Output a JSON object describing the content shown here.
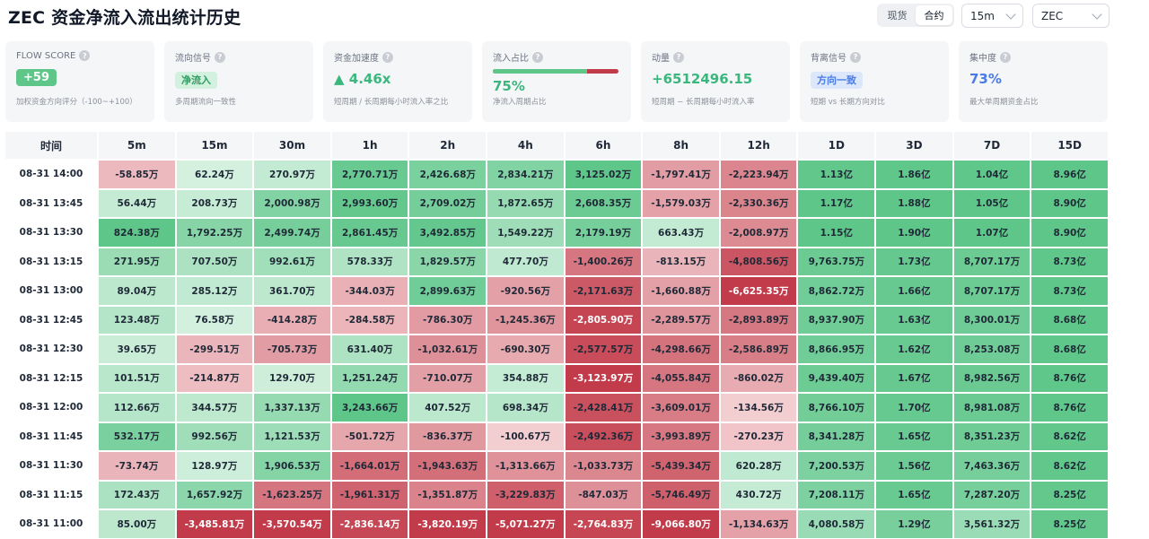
{
  "page": {
    "title": "ZEC 资金净流入流出统计历史",
    "market_toggle": [
      {
        "label": "现货",
        "active": false
      },
      {
        "label": "合约",
        "active": true
      }
    ],
    "timeframe_select": "15m",
    "coin_select": "ZEC"
  },
  "colors": {
    "positive_strong": "#5ec689",
    "negative_strong": "#c23b4a",
    "accent_green": "#3bb77e",
    "accent_blue": "#4b7be5"
  },
  "cards": [
    {
      "label": "FLOW SCORE",
      "value": "+59",
      "sub": "加权资金方向评分（-100~+100）",
      "value_style": "badge-green"
    },
    {
      "label": "流向信号",
      "value": "净流入",
      "sub": "多周期流向一致性",
      "value_style": "badge-green-light"
    },
    {
      "label": "资金加速度",
      "value": "▲ 4.46x",
      "sub": "短周期 / 长周期每小时流入率之比",
      "value_style": "green-text"
    },
    {
      "label": "流入占比",
      "value": "75%",
      "sub": "净流入周期占比",
      "value_style": "green-text",
      "ratio": 0.75
    },
    {
      "label": "动量",
      "value": "+6512496.15",
      "sub": "短周期 − 长周期每小时流入率",
      "value_style": "green-text"
    },
    {
      "label": "背离信号",
      "value": "方向一致",
      "sub": "短期 vs 长期方向对比",
      "value_style": "badge-blue"
    },
    {
      "label": "集中度",
      "value": "73%",
      "sub": "最大单周期资金占比",
      "value_style": "blue-text"
    }
  ],
  "table": {
    "columns": [
      "时间",
      "5m",
      "15m",
      "30m",
      "1h",
      "2h",
      "4h",
      "6h",
      "8h",
      "12h",
      "1D",
      "3D",
      "7D",
      "15D"
    ],
    "rows": [
      {
        "time": "08-31 14:00",
        "cells": [
          "-58.85万",
          "62.24万",
          "270.97万",
          "2,770.71万",
          "2,426.68万",
          "2,834.21万",
          "3,125.02万",
          "-1,797.41万",
          "-2,223.94万",
          "1.13亿",
          "1.86亿",
          "1.04亿",
          "8.96亿"
        ]
      },
      {
        "time": "08-31 13:45",
        "cells": [
          "56.44万",
          "208.73万",
          "2,000.98万",
          "2,993.60万",
          "2,709.02万",
          "1,872.65万",
          "2,608.35万",
          "-1,579.03万",
          "-2,330.36万",
          "1.17亿",
          "1.88亿",
          "1.05亿",
          "8.90亿"
        ]
      },
      {
        "time": "08-31 13:30",
        "cells": [
          "824.38万",
          "1,792.25万",
          "2,499.74万",
          "2,861.45万",
          "3,492.85万",
          "1,549.22万",
          "2,179.19万",
          "663.43万",
          "-2,008.97万",
          "1.15亿",
          "1.90亿",
          "1.07亿",
          "8.90亿"
        ]
      },
      {
        "time": "08-31 13:15",
        "cells": [
          "271.95万",
          "707.50万",
          "992.61万",
          "578.33万",
          "1,829.57万",
          "477.70万",
          "-1,400.26万",
          "-813.15万",
          "-4,808.56万",
          "9,763.75万",
          "1.73亿",
          "8,707.17万",
          "8.73亿"
        ]
      },
      {
        "time": "08-31 13:00",
        "cells": [
          "89.04万",
          "285.12万",
          "361.70万",
          "-344.03万",
          "2,899.63万",
          "-920.56万",
          "-2,171.63万",
          "-1,660.88万",
          "-6,625.35万",
          "8,862.72万",
          "1.66亿",
          "8,707.17万",
          "8.73亿"
        ]
      },
      {
        "time": "08-31 12:45",
        "cells": [
          "123.48万",
          "76.58万",
          "-414.28万",
          "-284.58万",
          "-786.30万",
          "-1,245.36万",
          "-2,805.90万",
          "-2,289.57万",
          "-2,893.89万",
          "8,937.90万",
          "1.63亿",
          "8,300.01万",
          "8.68亿"
        ]
      },
      {
        "time": "08-31 12:30",
        "cells": [
          "39.65万",
          "-299.51万",
          "-705.73万",
          "631.40万",
          "-1,032.61万",
          "-690.30万",
          "-2,577.57万",
          "-4,298.66万",
          "-2,586.89万",
          "8,866.95万",
          "1.62亿",
          "8,253.08万",
          "8.68亿"
        ]
      },
      {
        "time": "08-31 12:15",
        "cells": [
          "101.51万",
          "-214.87万",
          "129.70万",
          "1,251.24万",
          "-710.07万",
          "354.88万",
          "-3,123.97万",
          "-4,055.84万",
          "-860.02万",
          "9,439.40万",
          "1.67亿",
          "8,982.56万",
          "8.76亿"
        ]
      },
      {
        "time": "08-31 12:00",
        "cells": [
          "112.66万",
          "344.57万",
          "1,337.13万",
          "3,243.66万",
          "407.52万",
          "698.34万",
          "-2,428.41万",
          "-3,609.01万",
          "-134.56万",
          "8,766.10万",
          "1.70亿",
          "8,981.08万",
          "8.76亿"
        ]
      },
      {
        "time": "08-31 11:45",
        "cells": [
          "532.17万",
          "992.56万",
          "1,121.53万",
          "-501.72万",
          "-836.37万",
          "-100.67万",
          "-2,492.36万",
          "-3,993.89万",
          "-270.23万",
          "8,341.28万",
          "1.65亿",
          "8,351.23万",
          "8.62亿"
        ]
      },
      {
        "time": "08-31 11:30",
        "cells": [
          "-73.74万",
          "128.97万",
          "1,906.53万",
          "-1,664.01万",
          "-1,943.63万",
          "-1,313.66万",
          "-1,033.73万",
          "-5,439.34万",
          "620.28万",
          "7,200.53万",
          "1.56亿",
          "7,463.36万",
          "8.62亿"
        ]
      },
      {
        "time": "08-31 11:15",
        "cells": [
          "172.43万",
          "1,657.92万",
          "-1,623.25万",
          "-1,961.31万",
          "-1,351.87万",
          "-3,229.83万",
          "-847.03万",
          "-5,746.49万",
          "430.72万",
          "7,208.11万",
          "1.65亿",
          "7,287.20万",
          "8.25亿"
        ]
      },
      {
        "time": "08-31 11:00",
        "cells": [
          "85.00万",
          "-3,485.81万",
          "-3,570.54万",
          "-2,836.14万",
          "-3,820.19万",
          "-5,071.27万",
          "-2,764.83万",
          "-9,066.80万",
          "-1,134.63万",
          "4,080.58万",
          "1.29亿",
          "3,561.32万",
          "8.25亿"
        ]
      }
    ]
  }
}
